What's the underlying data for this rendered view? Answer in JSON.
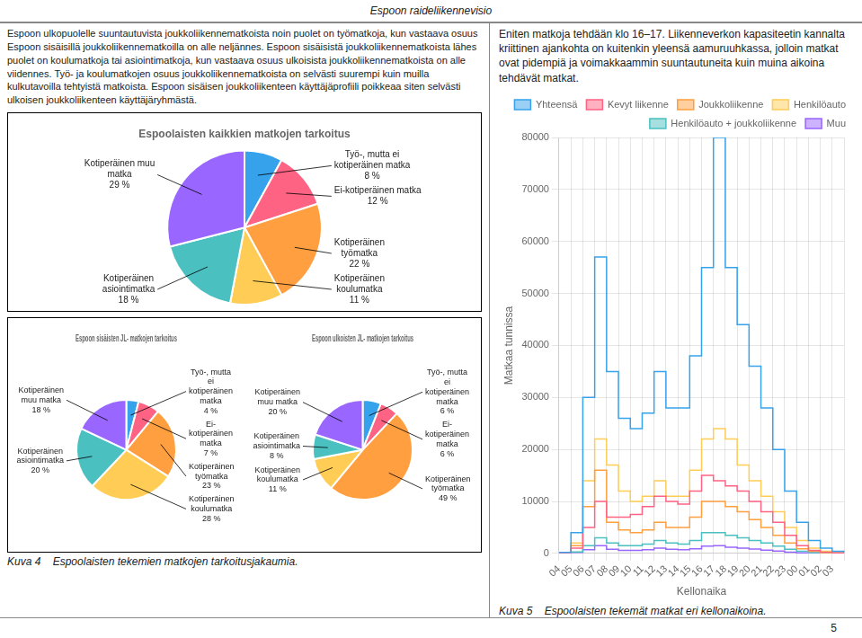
{
  "title": "Espoon raideli­ikenne­visio",
  "annotations": [
    "Espoon ulkopuolelle suuntautuvista joukkoliikennematkoista noin puolet on työmatkoja, kun vastaava osuus Espoon sisäisillä joukkoliikennematkoilla on alle neljännes. Espoon sisäisistä joukkoliikennematkoista lähes puolet on koulumatkoja tai asiointimatkoja, kun vastaava osuus ulkoisista joukkoliikennematkoista on alle viidennes. Työ- ja koulumatkojen osuus joukkoliikennematkoista on selvästi suurempi kuin muilla kulkutavoilla tehtyistä matkoista. Espoon sisäisen joukkoliikenteen käyttäjäprofiili poikkeaa siten selvästi ulkoisen joukkoliikenteen käyttäjäryhmästä.",
    "Eniten matkoja tehdään klo 16–17. Liikenneverkon kapasiteetin kannalta kriittinen ajankohta on kuitenkin yleensä aamuruuhkassa, jolloin matkat ovat pidempiä ja voimakkaammin suuntautuneita kuin muina aikoina tehdävät matkat.",
    "Kuva 4    Espoolaisten tekemien matkojen tarkoitusjakaumia.",
    "Kuva 5    Espoolaisten tekemät matkat eri kellonaikoina.",
    "5"
  ],
  "chart_data": [
    {
      "type": "pie",
      "title": "Espoolaisten kaikkien matkojen tarkoitus",
      "categories": [
        "Työ-, mutta ei\nkotiperäinen matka",
        "Ei-kotiperäinen matka",
        "Kotiperäinen\ntyömatka",
        "Kotiperäinen\nkoulumatka",
        "Kotiperäinen\nasiointimatka",
        "Kotiperäinen muu\nmatka"
      ],
      "values": [
        8,
        12,
        22,
        11,
        18,
        29
      ],
      "value_labels": [
        "8 %",
        "12 %",
        "22 %",
        "11 %",
        "18 %",
        "29 %"
      ],
      "data_labels": true
    },
    {
      "type": "pie",
      "title": "Espoon sisäisten JL- matkojen tarkoitus",
      "categories": [
        "Työ-, mutta\nei\nkotiperäinen\nmatka",
        "Ei-\nkotiperäinen\nmatka",
        "Kotiperäinen\ntyömatka",
        "Kotiperäinen\nkoulumatka",
        "Kotiperäinen\nasiointimatka",
        "Kotiperäinen\nmuu matka"
      ],
      "values": [
        4,
        7,
        23,
        28,
        20,
        18
      ],
      "value_labels": [
        "4 %",
        "7 %",
        "23 %",
        "28 %",
        "20 %",
        "18 %"
      ],
      "data_labels": true
    },
    {
      "type": "pie",
      "title": "Espoon ulkoisten JL- matkojen tarkoitus",
      "categories": [
        "Työ-, mutta\nei\nkotiperäinen\nmatka",
        "Ei-\nkotiperäinen\nmatka",
        "Kotiperäinen\ntyömatka",
        "Kotiperäinen\nkoulumatka",
        "Kotiperäinen\nasiointimatka",
        "Kotiperäinen\nmuu matka"
      ],
      "values": [
        6,
        6,
        49,
        11,
        8,
        20
      ],
      "value_labels": [
        "6 %",
        "6 %",
        "49 %",
        "11 %",
        "8 %",
        "20 %"
      ],
      "data_labels": true
    },
    {
      "type": "line",
      "xlabel": "Kellonaika",
      "ylabel": "Matkaa tunnissa",
      "categories": [
        "04",
        "05",
        "06",
        "07",
        "08",
        "09",
        "10",
        "11",
        "12",
        "13",
        "14",
        "15",
        "16",
        "17",
        "18",
        "19",
        "20",
        "21",
        "22",
        "23",
        "00",
        "01",
        "02",
        "03",
        null
      ],
      "series": [
        {
          "name": "Yhteensä",
          "values": [
            200,
            4000,
            30000,
            57000,
            35000,
            26000,
            24000,
            27000,
            35000,
            28000,
            28000,
            38000,
            55000,
            80000,
            55000,
            44000,
            36000,
            28000,
            20000,
            12000,
            6000,
            2500,
            1000,
            400,
            200
          ]
        },
        {
          "name": "Kevyt liikenne",
          "values": [
            100,
            1000,
            5000,
            10000,
            7000,
            7000,
            7500,
            9000,
            11000,
            10000,
            9500,
            12000,
            15000,
            14000,
            13000,
            12000,
            10000,
            8000,
            6000,
            3500,
            1500,
            600,
            250,
            100,
            100
          ]
        },
        {
          "name": "Joukkoliikenne",
          "values": [
            100,
            1500,
            9000,
            16000,
            6000,
            4500,
            4000,
            4500,
            6000,
            5000,
            5000,
            7000,
            10000,
            10000,
            9000,
            8000,
            6500,
            5000,
            3500,
            2000,
            900,
            400,
            150,
            80,
            80
          ]
        },
        {
          "name": "Henkilöauto",
          "values": [
            100,
            2000,
            14000,
            22000,
            17000,
            12000,
            10000,
            11000,
            14000,
            11000,
            11000,
            16000,
            22000,
            24000,
            22000,
            17000,
            14000,
            11000,
            8000,
            5000,
            2500,
            1000,
            400,
            150,
            150
          ]
        },
        {
          "name": "Henkilöauto + joukkoliikenne",
          "values": [
            30,
            300,
            1500,
            3000,
            2000,
            1500,
            1500,
            1800,
            2500,
            2000,
            1800,
            2500,
            4000,
            4000,
            3500,
            3000,
            2500,
            2000,
            1400,
            800,
            400,
            160,
            70,
            30,
            30
          ]
        },
        {
          "name": "Muu",
          "values": [
            20,
            200,
            700,
            1500,
            800,
            600,
            600,
            700,
            1000,
            800,
            700,
            900,
            1400,
            1500,
            1200,
            1000,
            850,
            650,
            450,
            250,
            120,
            50,
            20,
            20,
            20
          ]
        }
      ],
      "line_style": "steps",
      "ylim": [
        0,
        80000
      ],
      "yticks": [
        0,
        10000,
        20000,
        30000,
        40000,
        50000,
        60000,
        70000,
        80000
      ],
      "grid": true,
      "legend": "upper right"
    }
  ]
}
